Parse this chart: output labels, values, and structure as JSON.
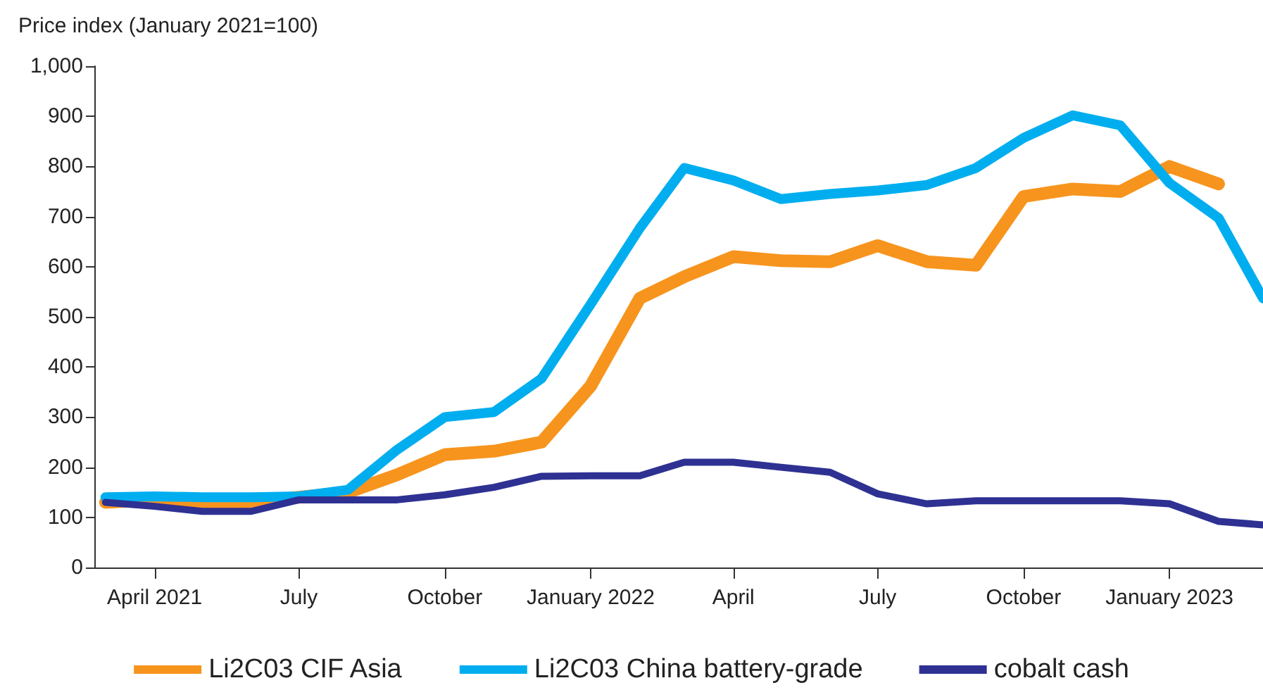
{
  "chart_data": {
    "type": "line",
    "ylabel": "Price index (January 2021=100)",
    "x": [
      "2021-03",
      "2021-04",
      "2021-05",
      "2021-06",
      "2021-07",
      "2021-08",
      "2021-09",
      "2021-10",
      "2021-11",
      "2021-12",
      "2022-01",
      "2022-02",
      "2022-03",
      "2022-04",
      "2022-05",
      "2022-06",
      "2022-07",
      "2022-08",
      "2022-09",
      "2022-10",
      "2022-11",
      "2022-12",
      "2023-01",
      "2023-02",
      "2023-03"
    ],
    "series": [
      {
        "name": "Li2C03 CIF Asia",
        "color": "#f7941d",
        "values": [
          130,
          135,
          130,
          130,
          140,
          150,
          185,
          225,
          232,
          250,
          362,
          537,
          580,
          620,
          612,
          610,
          642,
          610,
          603,
          740,
          755,
          750,
          800,
          765,
          null
        ]
      },
      {
        "name": "Li2C03 China battery-grade",
        "color": "#00aeef",
        "values": [
          140,
          142,
          140,
          140,
          142,
          155,
          235,
          300,
          310,
          377,
          525,
          677,
          797,
          772,
          735,
          745,
          752,
          763,
          797,
          857,
          902,
          882,
          767,
          697,
          537
        ]
      },
      {
        "name": "cobalt cash",
        "color": "#2e3192",
        "values": [
          130,
          122,
          112,
          112,
          135,
          135,
          135,
          145,
          160,
          182,
          183,
          183,
          210,
          210,
          200,
          190,
          147,
          127,
          133,
          133,
          133,
          133,
          127,
          92,
          85
        ]
      }
    ],
    "xlim": [
      "2021-02-22",
      "2023-03-01"
    ],
    "xticks": [
      {
        "value": "2021-04",
        "label": "April 2021"
      },
      {
        "value": "2021-07",
        "label": "July"
      },
      {
        "value": "2021-10",
        "label": "October"
      },
      {
        "value": "2022-01",
        "label": "January 2022"
      },
      {
        "value": "2022-04",
        "label": "April"
      },
      {
        "value": "2022-07",
        "label": "July"
      },
      {
        "value": "2022-10",
        "label": "October"
      },
      {
        "value": "2023-01",
        "label": "January 2023"
      }
    ],
    "ylim": [
      0,
      1000
    ],
    "yticks": [
      0,
      100,
      200,
      300,
      400,
      500,
      600,
      700,
      800,
      900,
      {
        "value": 1000,
        "label": "1,000"
      }
    ],
    "grid": false,
    "legend": "bottom",
    "marker": "none",
    "line_style": "solid"
  }
}
